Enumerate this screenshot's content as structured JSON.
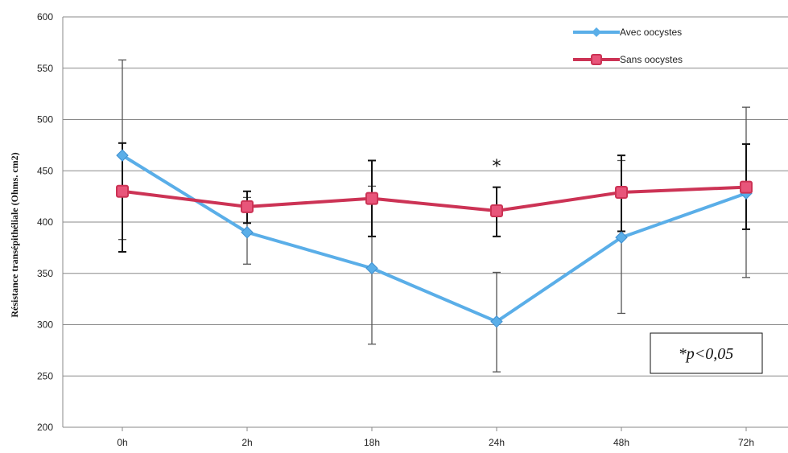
{
  "chart_data": {
    "type": "line",
    "categories": [
      "0h",
      "2h",
      "18h",
      "24h",
      "48h",
      "72h"
    ],
    "ylabel": "Résistance transépithéliale (Ohms. cm2)",
    "xlabel": "",
    "ylim": [
      200,
      600
    ],
    "yticks": [
      200,
      250,
      300,
      350,
      400,
      450,
      500,
      550,
      600
    ],
    "grid": true,
    "legend_position": "top-right",
    "series": [
      {
        "name": "Avec oocystes",
        "color": "#5aaee8",
        "marker": "diamond",
        "values": [
          465,
          390,
          355,
          303,
          385,
          428
        ],
        "err_low": [
          383,
          359,
          281,
          254,
          311,
          346
        ],
        "err_high": [
          558,
          424,
          435,
          351,
          460,
          512
        ]
      },
      {
        "name": "Sans oocystes",
        "color": "#cc3355",
        "marker": "square",
        "values": [
          430,
          415,
          423,
          411,
          429,
          434
        ],
        "err_low": [
          371,
          399,
          386,
          386,
          391,
          393
        ],
        "err_high": [
          477,
          430,
          460,
          434,
          465,
          476
        ]
      }
    ],
    "annotations": [
      {
        "text": "*",
        "category": "24h",
        "y": 458
      },
      {
        "text": "*p<0,05",
        "boxed": true
      }
    ]
  }
}
